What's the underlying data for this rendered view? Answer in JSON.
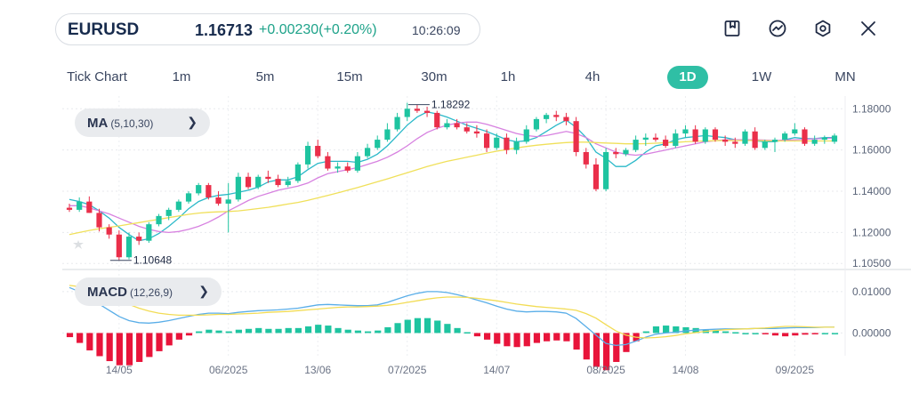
{
  "header": {
    "symbol": "EURUSD",
    "price": "1.16713",
    "change": "+0.00230(+0.20%)",
    "time": "10:26:09"
  },
  "toolbar": {
    "icons": [
      "bookmark-icon",
      "chart-trend-icon",
      "settings-icon",
      "close-icon"
    ]
  },
  "timeframes": {
    "items": [
      "Tick Chart",
      "1m",
      "5m",
      "15m",
      "30m",
      "1h",
      "4h",
      "1D",
      "1W",
      "MN"
    ],
    "active": "1D"
  },
  "indicators": {
    "ma": {
      "name": "MA",
      "params": "(5,10,30)"
    },
    "macd": {
      "name": "MACD",
      "params": "(12,26,9)"
    }
  },
  "colors": {
    "up": "#1ec4a0",
    "down": "#ea2f4a",
    "ma5": "#2bb9c9",
    "ma10": "#d781e0",
    "ma30": "#f0e05a",
    "macd": "#5aaee8",
    "signal": "#f2dc55",
    "accent": "#2fbfa5"
  },
  "chart_data": [
    {
      "type": "candlestick",
      "title": "",
      "y_tick_labels": [
        "1.18000",
        "1.16000",
        "1.14000",
        "1.12000",
        "1.10500"
      ],
      "y_ticks": [
        1.18,
        1.16,
        1.14,
        1.12,
        1.105
      ],
      "ylim": [
        1.1025,
        1.184
      ],
      "x_tick_labels": [
        "14/05",
        "06/2025",
        "13/06",
        "07/2025",
        "14/07",
        "08/2025",
        "14/08",
        "09/2025"
      ],
      "x_tick_index": [
        5,
        16,
        25,
        34,
        43,
        54,
        62,
        73
      ],
      "annotations": {
        "max_label": "1.18292",
        "max_index": 35,
        "min_label": "1.10648",
        "min_index": 5
      },
      "grid": true,
      "candles": [
        [
          1.132,
          1.134,
          1.13,
          1.131
        ],
        [
          1.131,
          1.137,
          1.13,
          1.135
        ],
        [
          1.135,
          1.1375,
          1.1295,
          1.1295
        ],
        [
          1.1295,
          1.1315,
          1.1205,
          1.1225
        ],
        [
          1.1225,
          1.124,
          1.117,
          1.119
        ],
        [
          1.119,
          1.121,
          1.1065,
          1.108
        ],
        [
          1.108,
          1.12,
          1.107,
          1.118
        ],
        [
          1.118,
          1.12,
          1.114,
          1.116
        ],
        [
          1.116,
          1.125,
          1.115,
          1.124
        ],
        [
          1.124,
          1.129,
          1.123,
          1.128
        ],
        [
          1.128,
          1.132,
          1.126,
          1.131
        ],
        [
          1.131,
          1.136,
          1.13,
          1.135
        ],
        [
          1.135,
          1.14,
          1.134,
          1.139
        ],
        [
          1.139,
          1.144,
          1.138,
          1.143
        ],
        [
          1.143,
          1.144,
          1.136,
          1.137
        ],
        [
          1.137,
          1.14,
          1.133,
          1.134
        ],
        [
          1.134,
          1.144,
          1.12,
          1.136
        ],
        [
          1.136,
          1.149,
          1.135,
          1.147
        ],
        [
          1.147,
          1.149,
          1.141,
          1.142
        ],
        [
          1.142,
          1.148,
          1.141,
          1.147
        ],
        [
          1.147,
          1.15,
          1.144,
          1.146
        ],
        [
          1.146,
          1.148,
          1.142,
          1.143
        ],
        [
          1.143,
          1.147,
          1.142,
          1.145
        ],
        [
          1.145,
          1.154,
          1.144,
          1.153
        ],
        [
          1.153,
          1.164,
          1.151,
          1.162
        ],
        [
          1.162,
          1.165,
          1.156,
          1.157
        ],
        [
          1.157,
          1.159,
          1.15,
          1.151
        ],
        [
          1.151,
          1.154,
          1.149,
          1.152
        ],
        [
          1.152,
          1.154,
          1.149,
          1.15
        ],
        [
          1.15,
          1.159,
          1.149,
          1.157
        ],
        [
          1.157,
          1.163,
          1.156,
          1.161
        ],
        [
          1.161,
          1.167,
          1.16,
          1.165
        ],
        [
          1.165,
          1.173,
          1.164,
          1.17
        ],
        [
          1.17,
          1.178,
          1.169,
          1.176
        ],
        [
          1.176,
          1.1829,
          1.174,
          1.18
        ],
        [
          1.18,
          1.182,
          1.178,
          1.179
        ],
        [
          1.179,
          1.181,
          1.176,
          1.178
        ],
        [
          1.178,
          1.179,
          1.17,
          1.171
        ],
        [
          1.171,
          1.175,
          1.17,
          1.173
        ],
        [
          1.173,
          1.175,
          1.17,
          1.171
        ],
        [
          1.171,
          1.173,
          1.168,
          1.169
        ],
        [
          1.169,
          1.172,
          1.166,
          1.168
        ],
        [
          1.168,
          1.17,
          1.159,
          1.161
        ],
        [
          1.161,
          1.168,
          1.16,
          1.166
        ],
        [
          1.166,
          1.168,
          1.158,
          1.16
        ],
        [
          1.16,
          1.166,
          1.158,
          1.164
        ],
        [
          1.164,
          1.172,
          1.163,
          1.17
        ],
        [
          1.17,
          1.176,
          1.169,
          1.175
        ],
        [
          1.175,
          1.178,
          1.173,
          1.177
        ],
        [
          1.177,
          1.179,
          1.174,
          1.176
        ],
        [
          1.176,
          1.178,
          1.172,
          1.174
        ],
        [
          1.174,
          1.176,
          1.157,
          1.159
        ],
        [
          1.159,
          1.161,
          1.151,
          1.153
        ],
        [
          1.153,
          1.156,
          1.14,
          1.141
        ],
        [
          1.141,
          1.161,
          1.14,
          1.159
        ],
        [
          1.159,
          1.161,
          1.156,
          1.158
        ],
        [
          1.158,
          1.161,
          1.157,
          1.16
        ],
        [
          1.16,
          1.167,
          1.159,
          1.165
        ],
        [
          1.165,
          1.168,
          1.162,
          1.166
        ],
        [
          1.166,
          1.168,
          1.164,
          1.165
        ],
        [
          1.165,
          1.167,
          1.161,
          1.162
        ],
        [
          1.162,
          1.17,
          1.161,
          1.168
        ],
        [
          1.168,
          1.172,
          1.166,
          1.17
        ],
        [
          1.17,
          1.172,
          1.163,
          1.164
        ],
        [
          1.164,
          1.171,
          1.163,
          1.17
        ],
        [
          1.17,
          1.171,
          1.164,
          1.165
        ],
        [
          1.165,
          1.167,
          1.162,
          1.164
        ],
        [
          1.164,
          1.166,
          1.161,
          1.163
        ],
        [
          1.163,
          1.17,
          1.162,
          1.169
        ],
        [
          1.169,
          1.171,
          1.16,
          1.161
        ],
        [
          1.161,
          1.165,
          1.16,
          1.164
        ],
        [
          1.164,
          1.166,
          1.159,
          1.165
        ],
        [
          1.165,
          1.169,
          1.164,
          1.168
        ],
        [
          1.168,
          1.173,
          1.167,
          1.17
        ],
        [
          1.17,
          1.171,
          1.162,
          1.163
        ],
        [
          1.163,
          1.167,
          1.162,
          1.165
        ],
        [
          1.165,
          1.167,
          1.163,
          1.166
        ],
        [
          1.164,
          1.168,
          1.163,
          1.167
        ]
      ],
      "series": [
        {
          "name": "MA5",
          "color": "#2bb9c9",
          "values": [
            1.136,
            1.135,
            1.1335,
            1.1305,
            1.127,
            1.1225,
            1.119,
            1.116,
            1.117,
            1.1195,
            1.123,
            1.127,
            1.1315,
            1.135,
            1.137,
            1.138,
            1.1385,
            1.1395,
            1.1405,
            1.142,
            1.1445,
            1.1455,
            1.1455,
            1.147,
            1.1505,
            1.1535,
            1.1545,
            1.1545,
            1.1545,
            1.154,
            1.1555,
            1.158,
            1.162,
            1.167,
            1.172,
            1.176,
            1.1785,
            1.1775,
            1.176,
            1.174,
            1.172,
            1.1705,
            1.169,
            1.167,
            1.165,
            1.164,
            1.1645,
            1.166,
            1.169,
            1.172,
            1.1745,
            1.171,
            1.166,
            1.159,
            1.156,
            1.152,
            1.152,
            1.155,
            1.159,
            1.162,
            1.163,
            1.165,
            1.166,
            1.1665,
            1.167,
            1.1665,
            1.166,
            1.165,
            1.165,
            1.1645,
            1.164,
            1.164,
            1.165,
            1.166,
            1.1655,
            1.1655,
            1.166,
            1.166
          ]
        },
        {
          "name": "MA10",
          "color": "#d781e0",
          "values": [
            1.133,
            1.133,
            1.132,
            1.1305,
            1.129,
            1.127,
            1.125,
            1.123,
            1.1215,
            1.1205,
            1.12,
            1.1205,
            1.1215,
            1.123,
            1.125,
            1.1275,
            1.1305,
            1.133,
            1.1355,
            1.1375,
            1.139,
            1.1405,
            1.1415,
            1.1425,
            1.144,
            1.1465,
            1.1485,
            1.1495,
            1.1505,
            1.1515,
            1.153,
            1.1545,
            1.1565,
            1.159,
            1.162,
            1.1655,
            1.1685,
            1.1705,
            1.172,
            1.173,
            1.1735,
            1.1735,
            1.1725,
            1.171,
            1.1695,
            1.168,
            1.167,
            1.1665,
            1.167,
            1.168,
            1.169,
            1.168,
            1.166,
            1.163,
            1.161,
            1.159,
            1.158,
            1.1575,
            1.158,
            1.159,
            1.16,
            1.161,
            1.162,
            1.163,
            1.164,
            1.1645,
            1.165,
            1.165,
            1.165,
            1.165,
            1.1648,
            1.1646,
            1.1648,
            1.165,
            1.1652,
            1.1654,
            1.1656,
            1.1658
          ]
        },
        {
          "name": "MA30",
          "color": "#f0e05a",
          "values": [
            1.119,
            1.12,
            1.121,
            1.1218,
            1.1225,
            1.1232,
            1.124,
            1.1248,
            1.1256,
            1.1264,
            1.1272,
            1.128,
            1.1288,
            1.1294,
            1.1298,
            1.13,
            1.1302,
            1.1305,
            1.131,
            1.1316,
            1.1322,
            1.133,
            1.1338,
            1.1346,
            1.1356,
            1.1368,
            1.138,
            1.1392,
            1.1405,
            1.1418,
            1.1432,
            1.1446,
            1.146,
            1.1475,
            1.149,
            1.1505,
            1.152,
            1.1533,
            1.1545,
            1.1555,
            1.1565,
            1.1575,
            1.1585,
            1.1594,
            1.1602,
            1.161,
            1.1617,
            1.1623,
            1.1628,
            1.1632,
            1.1636,
            1.1638,
            1.1638,
            1.1636,
            1.1634,
            1.1632,
            1.163,
            1.163,
            1.1631,
            1.1633,
            1.1635,
            1.1637,
            1.164,
            1.1642,
            1.1644,
            1.1645,
            1.1646,
            1.1646,
            1.1646,
            1.1646,
            1.1645,
            1.1644,
            1.1644,
            1.1644,
            1.1644,
            1.1644,
            1.1644,
            1.1644
          ]
        }
      ]
    },
    {
      "type": "macd",
      "y_tick_labels": [
        "0.01000",
        "0.00000"
      ],
      "y_ticks": [
        0.01,
        0.0
      ],
      "ylim": [
        -0.0055,
        0.0145
      ],
      "series": [
        {
          "name": "MACD",
          "color": "#5aaee8",
          "values": [
            0.011,
            0.01,
            0.0085,
            0.007,
            0.0055,
            0.004,
            0.003,
            0.0025,
            0.0024,
            0.0026,
            0.003,
            0.0035,
            0.004,
            0.0045,
            0.0048,
            0.0048,
            0.0047,
            0.005,
            0.0052,
            0.0054,
            0.0055,
            0.0056,
            0.0058,
            0.006,
            0.0064,
            0.0068,
            0.0069,
            0.0068,
            0.0067,
            0.0066,
            0.0066,
            0.0068,
            0.0074,
            0.0082,
            0.009,
            0.0096,
            0.01,
            0.01,
            0.0098,
            0.0093,
            0.0087,
            0.008,
            0.0073,
            0.0065,
            0.0058,
            0.0053,
            0.0051,
            0.0052,
            0.0052,
            0.0051,
            0.0048,
            0.0035,
            0.0015,
            -0.0005,
            -0.0025,
            -0.003,
            -0.0028,
            -0.002,
            -0.001,
            -0.0003,
            0.0,
            0.0002,
            0.0005,
            0.0007,
            0.0008,
            0.0009,
            0.001,
            0.001,
            0.001,
            0.0011,
            0.0011,
            0.0011,
            0.0012,
            0.0013,
            0.0013,
            0.0013,
            0.0014,
            0.0014
          ]
        },
        {
          "name": "Signal",
          "color": "#f2dc55",
          "values": [
            0.0115,
            0.0112,
            0.0106,
            0.0098,
            0.0089,
            0.0079,
            0.0069,
            0.006,
            0.0053,
            0.0048,
            0.0045,
            0.0043,
            0.0043,
            0.0043,
            0.0044,
            0.0045,
            0.0045,
            0.0046,
            0.0047,
            0.0048,
            0.005,
            0.0051,
            0.0052,
            0.0054,
            0.0056,
            0.0058,
            0.006,
            0.0062,
            0.0063,
            0.0063,
            0.0064,
            0.0065,
            0.0067,
            0.007,
            0.0074,
            0.0078,
            0.0082,
            0.0085,
            0.0087,
            0.0087,
            0.0086,
            0.0084,
            0.0081,
            0.0078,
            0.0074,
            0.007,
            0.0067,
            0.0064,
            0.0062,
            0.006,
            0.0058,
            0.0055,
            0.0047,
            0.0036,
            0.002,
            0.0005,
            -0.0005,
            -0.001,
            -0.0012,
            -0.0011,
            -0.0009,
            -0.0006,
            -0.0002,
            0.0001,
            0.0004,
            0.0006,
            0.0008,
            0.0009,
            0.001,
            0.0011,
            0.0012,
            0.0014,
            0.0016,
            0.0016,
            0.0015,
            0.0014,
            0.0014,
            0.0014
          ]
        }
      ]
    }
  ]
}
